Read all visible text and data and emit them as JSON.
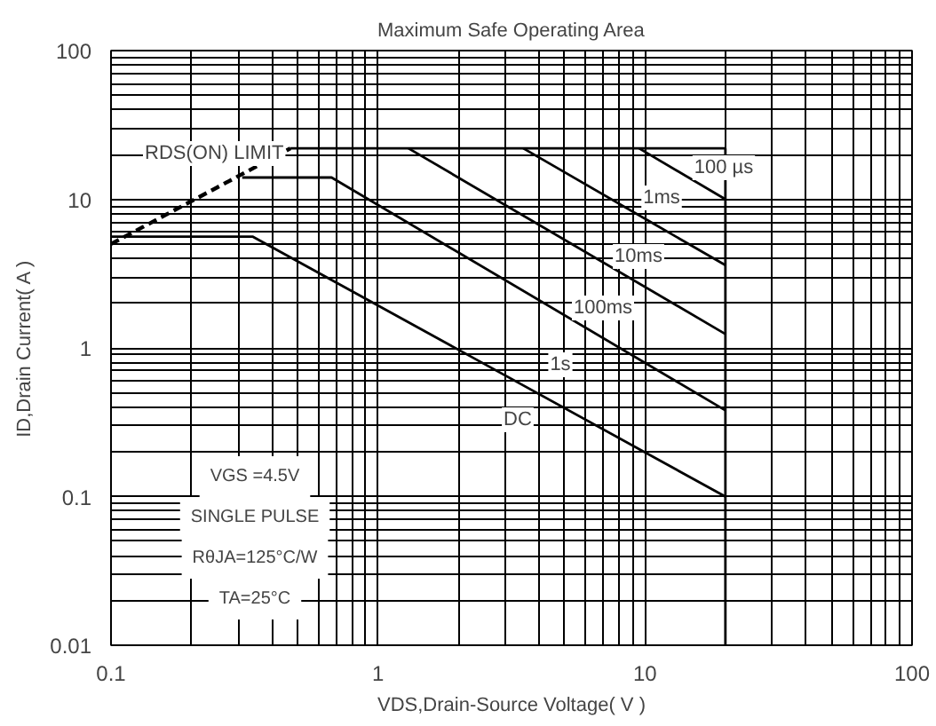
{
  "chart_data": {
    "type": "line",
    "title": "Maximum Safe Operating Area",
    "xlabel": "VDS,Drain-Source Voltage( V )",
    "ylabel": "ID,Drain Current( A )",
    "log": "xy",
    "grid": true,
    "marker": "none",
    "xlim": [
      0.1,
      100
    ],
    "xticks": [
      0.1,
      1,
      10,
      100
    ],
    "ylim": [
      0.01,
      100
    ],
    "yticks": [
      0.01,
      0.1,
      1,
      10,
      100
    ],
    "series": [
      {
        "color": "#000000",
        "line_style": "dashed",
        "x": [
          0.1,
          0.47
        ],
        "values": [
          5,
          22
        ]
      },
      {
        "color": "#000000",
        "x": [
          0.47,
          20
        ],
        "values": [
          22,
          22
        ]
      },
      {
        "color": "#000000",
        "x": [
          9.5,
          20
        ],
        "values": [
          22,
          10
        ]
      },
      {
        "color": "#000000",
        "x": [
          3.5,
          20
        ],
        "values": [
          22,
          3.6
        ]
      },
      {
        "color": "#000000",
        "x": [
          1.3,
          20
        ],
        "values": [
          22,
          1.24
        ]
      },
      {
        "color": "#000000",
        "x": [
          0.31,
          0.67,
          20
        ],
        "values": [
          14,
          14,
          0.38
        ]
      },
      {
        "color": "#000000",
        "x": [
          0.1,
          0.34,
          20
        ],
        "values": [
          5.6,
          5.6,
          0.1
        ]
      },
      {
        "color": "#000000",
        "x": [
          20,
          20
        ],
        "values": [
          22,
          0.01
        ]
      }
    ],
    "annotations": [
      "RDS(ON) LIMIT",
      "100 µs",
      "1ms",
      "10ms",
      "100ms",
      "1s",
      "DC",
      "VGS =4.5V",
      "SINGLE PULSE",
      "RθJA=125°C/W",
      "TA=25°C"
    ]
  }
}
